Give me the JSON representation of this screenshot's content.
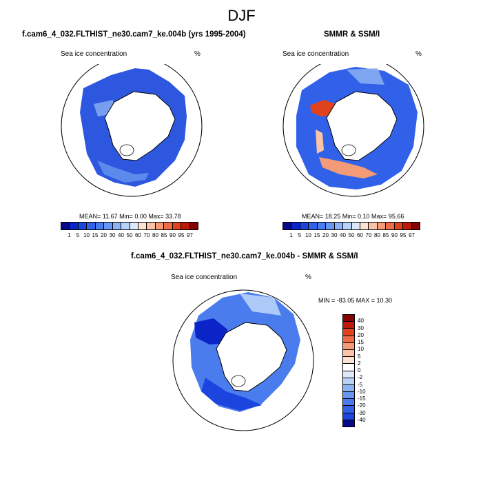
{
  "main_title": "DJF",
  "panels": [
    {
      "title": "f.cam6_4_032.FLTHIST_ne30.cam7_ke.004b (yrs 1995-2004)",
      "variable": "Sea ice concentration",
      "units": "%",
      "stats": "MEAN= 11.67  Min=  0.00  Max= 33.78",
      "colorbar_labels": [
        "1",
        "5",
        "10",
        "15",
        "20",
        "30",
        "40",
        "50",
        "60",
        "70",
        "80",
        "85",
        "90",
        "95",
        "97"
      ]
    },
    {
      "title": "SMMR & SSM/I",
      "variable": "Sea ice concentration",
      "units": "%",
      "stats": "MEAN= 18.25  Min=  0.10  Max= 95.66",
      "colorbar_labels": [
        "1",
        "5",
        "10",
        "15",
        "20",
        "30",
        "40",
        "50",
        "60",
        "70",
        "80",
        "85",
        "90",
        "95",
        "97"
      ]
    },
    {
      "title": "f.cam6_4_032.FLTHIST_ne30.cam7_ke.004b - SMMR & SSM/I",
      "variable": "Sea ice concentration",
      "units": "%",
      "stats": "MIN = -83.05 MAX =  10.30",
      "colorbar_labels": [
        "40",
        "30",
        "20",
        "15",
        "10",
        "5",
        "2",
        "0",
        "-2",
        "-5",
        "-10",
        "-15",
        "-20",
        "-30",
        "-40"
      ]
    }
  ],
  "colors": {
    "abs_scale": [
      "#08088a",
      "#0b24c8",
      "#1c45e0",
      "#3161e8",
      "#4a7ced",
      "#6797f0",
      "#8bb2f3",
      "#b7d1f7",
      "#dde9fb",
      "#fbe3d4",
      "#f8c3a6",
      "#f39b76",
      "#ee6d47",
      "#e0421e",
      "#bd1a0c",
      "#850303"
    ],
    "diff_scale": [
      "#850303",
      "#bd1a0c",
      "#e0421e",
      "#ee6d47",
      "#f39b76",
      "#f8c3a6",
      "#fbe3d4",
      "#ffffff",
      "#dde9fb",
      "#b7d1f7",
      "#8bb2f3",
      "#6797f0",
      "#4a7ced",
      "#3161e8",
      "#1c45e0",
      "#08088a"
    ]
  }
}
